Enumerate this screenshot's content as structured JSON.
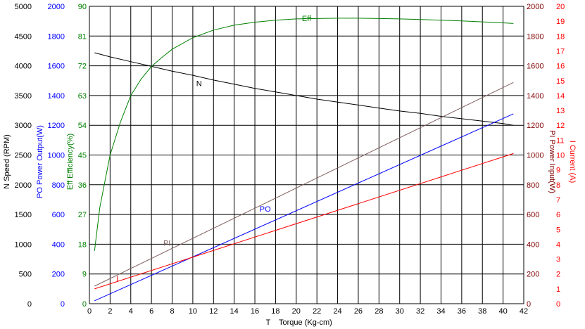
{
  "chart_data": {
    "type": "line",
    "xlabel": {
      "symbol": "T",
      "text": "Torque (Kg-cm)"
    },
    "x_ticks": [
      "0",
      "2",
      "4",
      "6",
      "8",
      "10",
      "12",
      "14",
      "16",
      "18",
      "20",
      "22",
      "24",
      "26",
      "28",
      "30",
      "32",
      "34",
      "36",
      "38",
      "40",
      "42"
    ],
    "xlim": [
      0,
      42
    ],
    "axes": [
      {
        "id": "N",
        "symbol": "N",
        "label": "Speed (RPM)",
        "color": "#000000",
        "side": "left",
        "ticks": [
          "0",
          "500",
          "1000",
          "1500",
          "2000",
          "2500",
          "3000",
          "3500",
          "4000",
          "4500",
          "5000"
        ],
        "lim": [
          0,
          5000
        ]
      },
      {
        "id": "PO",
        "symbol": "PO",
        "label": "Power Output(W)",
        "color": "#0000ff",
        "side": "left",
        "ticks": [
          "0",
          "200",
          "400",
          "600",
          "800",
          "1000",
          "1200",
          "1400",
          "1600",
          "1800",
          "2000"
        ],
        "lim": [
          0,
          2000
        ]
      },
      {
        "id": "Eff",
        "symbol": "Eff",
        "label": "Efficiency(%)",
        "color": "#008000",
        "side": "left",
        "ticks": [
          "0",
          "9",
          "18",
          "27",
          "36",
          "45",
          "54",
          "63",
          "72",
          "81",
          "90"
        ],
        "lim": [
          0,
          90
        ]
      },
      {
        "id": "PI",
        "symbol": "PI",
        "label": "Power Input(W)",
        "color": "#800000",
        "side": "right",
        "ticks": [
          "0",
          "200",
          "400",
          "600",
          "800",
          "1000",
          "1200",
          "1400",
          "1600",
          "1800",
          "2000"
        ],
        "lim": [
          0,
          2000
        ]
      },
      {
        "id": "I",
        "symbol": "I",
        "label": "Current (A)",
        "color": "#ff0000",
        "side": "right",
        "ticks": [
          "0",
          "1",
          "2",
          "3",
          "4",
          "5",
          "6",
          "7",
          "8",
          "9",
          "10",
          "11",
          "12",
          "13",
          "14",
          "15",
          "16",
          "17",
          "18",
          "19",
          "20"
        ],
        "lim": [
          0,
          20
        ]
      }
    ],
    "series": [
      {
        "name": "N",
        "axis": "N",
        "color": "#000000",
        "x": [
          0.5,
          2,
          4,
          6,
          8,
          10,
          12,
          14,
          16,
          18,
          20,
          22,
          24,
          26,
          28,
          30,
          32,
          34,
          36,
          38,
          40,
          41
        ],
        "y": [
          4220,
          4150,
          4070,
          3990,
          3910,
          3840,
          3760,
          3690,
          3620,
          3560,
          3500,
          3440,
          3390,
          3340,
          3290,
          3240,
          3200,
          3150,
          3110,
          3070,
          3030,
          3000
        ]
      },
      {
        "name": "Eff",
        "axis": "Eff",
        "color": "#008000",
        "x": [
          0.5,
          1,
          1.5,
          2,
          3,
          4,
          5,
          6,
          7,
          8,
          10,
          12,
          14,
          16,
          18,
          20,
          22,
          24,
          26,
          28,
          30,
          32,
          34,
          36,
          38,
          40,
          41
        ],
        "y": [
          16,
          29,
          37,
          45,
          55,
          63,
          68,
          71.8,
          74.5,
          77,
          80.5,
          82.8,
          84.3,
          85.2,
          85.8,
          86.2,
          86.3,
          86.4,
          86.4,
          86.3,
          86.2,
          86.0,
          85.8,
          85.6,
          85.3,
          85.0,
          84.8
        ]
      },
      {
        "name": "PI",
        "axis": "PI",
        "color": "#806060",
        "x": [
          0.5,
          41
        ],
        "y": [
          118,
          1488
        ]
      },
      {
        "name": "PO",
        "axis": "PO",
        "color": "#0000ff",
        "x": [
          0.5,
          41
        ],
        "y": [
          20,
          1277
        ]
      },
      {
        "name": "I",
        "axis": "I",
        "color": "#ff0000",
        "x": [
          0.5,
          41
        ],
        "y": [
          1.0,
          10.1
        ]
      }
    ],
    "curve_labels": [
      {
        "text": "Eff",
        "x": 21,
        "y": 85.5,
        "axis": "Eff",
        "color": "#008000"
      },
      {
        "text": "N",
        "x": 10.6,
        "y": 3660,
        "axis": "N",
        "color": "#000000"
      },
      {
        "text": "PO",
        "x": 17,
        "y": 620,
        "axis": "PO",
        "color": "#0000ff"
      },
      {
        "text": "PI",
        "x": 7.5,
        "y": 390,
        "axis": "PI",
        "color": "#806060"
      },
      {
        "text": "I",
        "x": 2.7,
        "y": 1.5,
        "axis": "I",
        "color": "#ff0000"
      }
    ],
    "grid": true
  }
}
